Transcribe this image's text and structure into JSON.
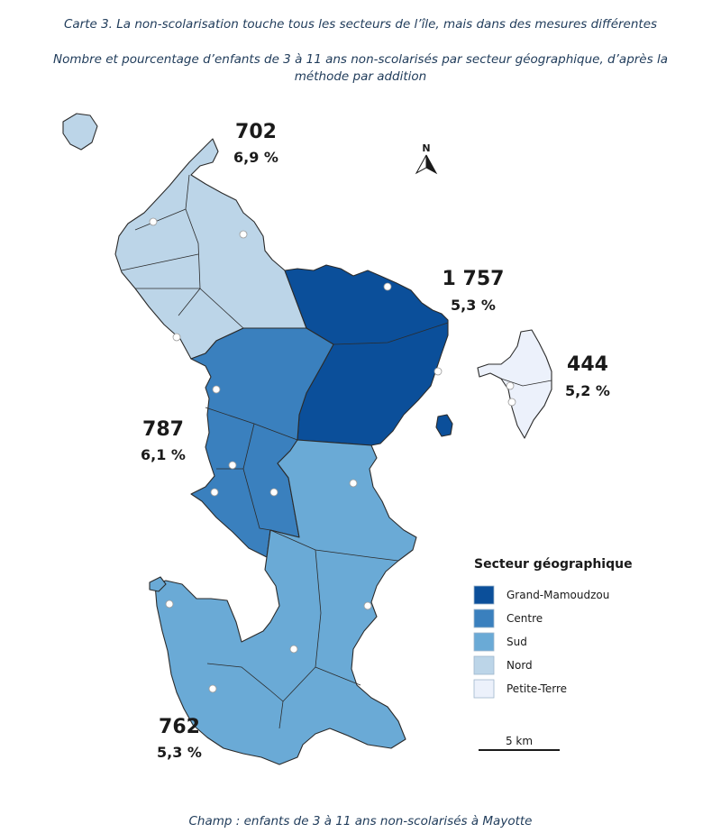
{
  "title": "Carte 3. La non-scolarisation touche tous les secteurs de l’île, mais dans des mesures différentes",
  "subtitle_line1": "Nombre et pourcentage d’enfants de 3 à 11 ans non-scolarisés par secteur géographique, d’après la",
  "subtitle_line2": "méthode par addition",
  "footer": "Champ : enfants de 3 à 11 ans non-scolarisés à Mayotte",
  "north_label": "N",
  "scale_label": "5 km",
  "legend": {
    "title": "Secteur géographique",
    "items": [
      {
        "label": "Grand-Mamoudzou",
        "color": "#0b4f9a"
      },
      {
        "label": "Centre",
        "color": "#3a80be"
      },
      {
        "label": "Sud",
        "color": "#6aaad6"
      },
      {
        "label": "Nord",
        "color": "#bcd5e8"
      },
      {
        "label": "Petite-Terre",
        "color": "#ecf1fb"
      }
    ]
  },
  "sectors": {
    "nord": {
      "count": "702",
      "percent": "6,9 %"
    },
    "grand_mamoudzou": {
      "count": "1 757",
      "percent": "5,3 %"
    },
    "petite_terre": {
      "count": "444",
      "percent": "5,2 %"
    },
    "centre": {
      "count": "787",
      "percent": "6,1 %"
    },
    "sud": {
      "count": "762",
      "percent": "5,3 %"
    }
  }
}
